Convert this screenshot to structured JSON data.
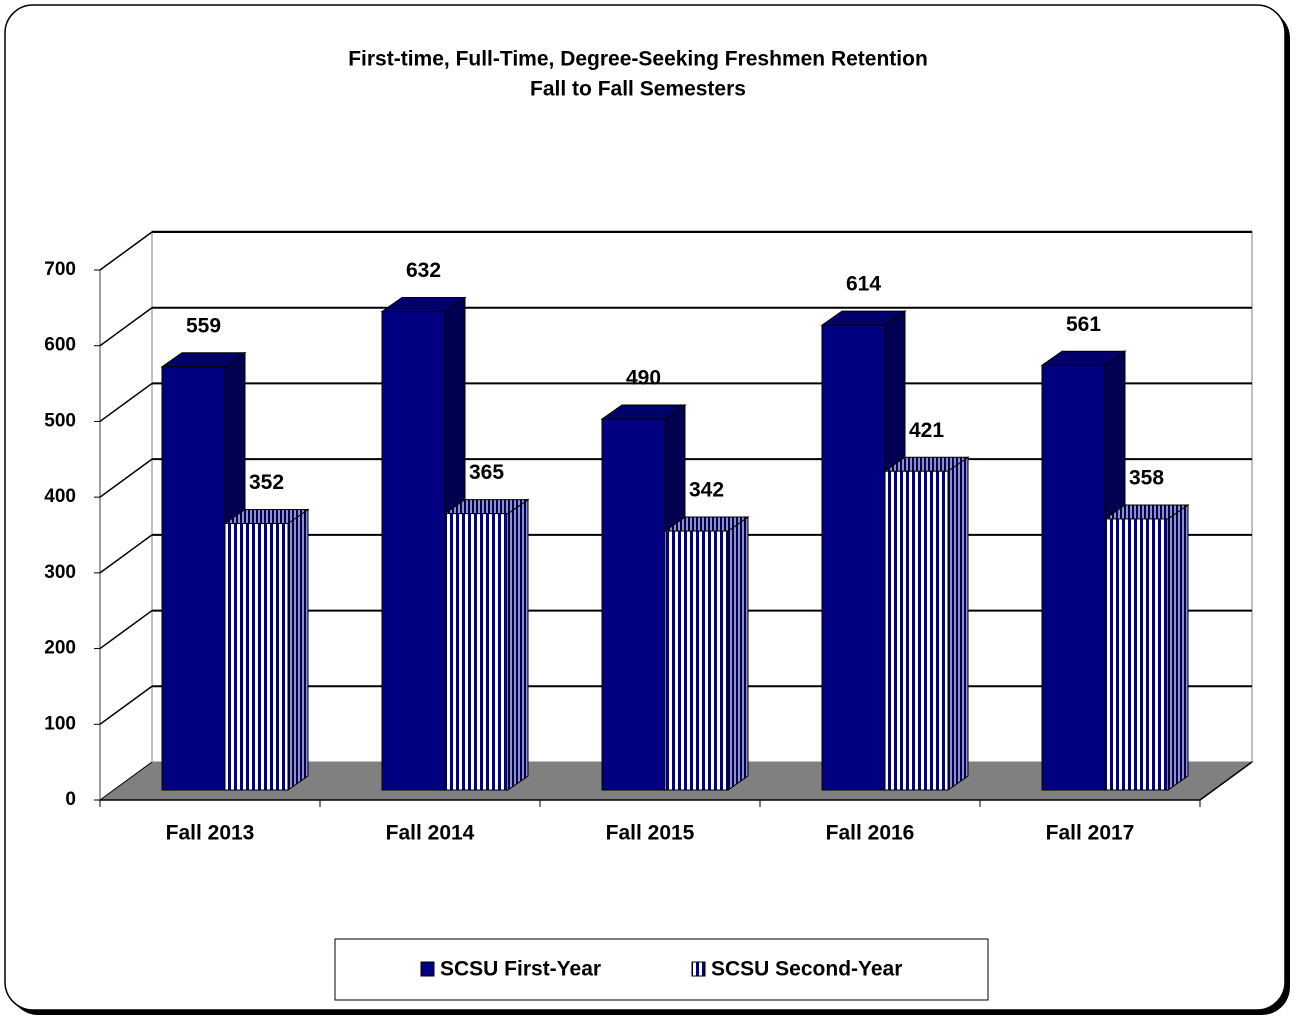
{
  "chart_data": {
    "type": "bar3d",
    "title": "First-time, Full-Time, Degree-Seeking Freshmen Retention",
    "subtitle": "Fall to Fall Semesters",
    "categories": [
      "Fall 2013",
      "Fall 2014",
      "Fall 2015",
      "Fall 2016",
      "Fall 2017"
    ],
    "series": [
      {
        "name": "SCSU First-Year",
        "color": "#000080",
        "pattern": "solid",
        "values": [
          559,
          632,
          490,
          614,
          561
        ]
      },
      {
        "name": "SCSU Second-Year",
        "color": "#000080",
        "pattern": "vertical-stripes",
        "values": [
          352,
          365,
          342,
          421,
          358
        ]
      }
    ],
    "ylim": [
      0,
      700
    ],
    "yticks": [
      0,
      100,
      200,
      300,
      400,
      500,
      600,
      700
    ],
    "grid": true,
    "legend": "bottom"
  }
}
